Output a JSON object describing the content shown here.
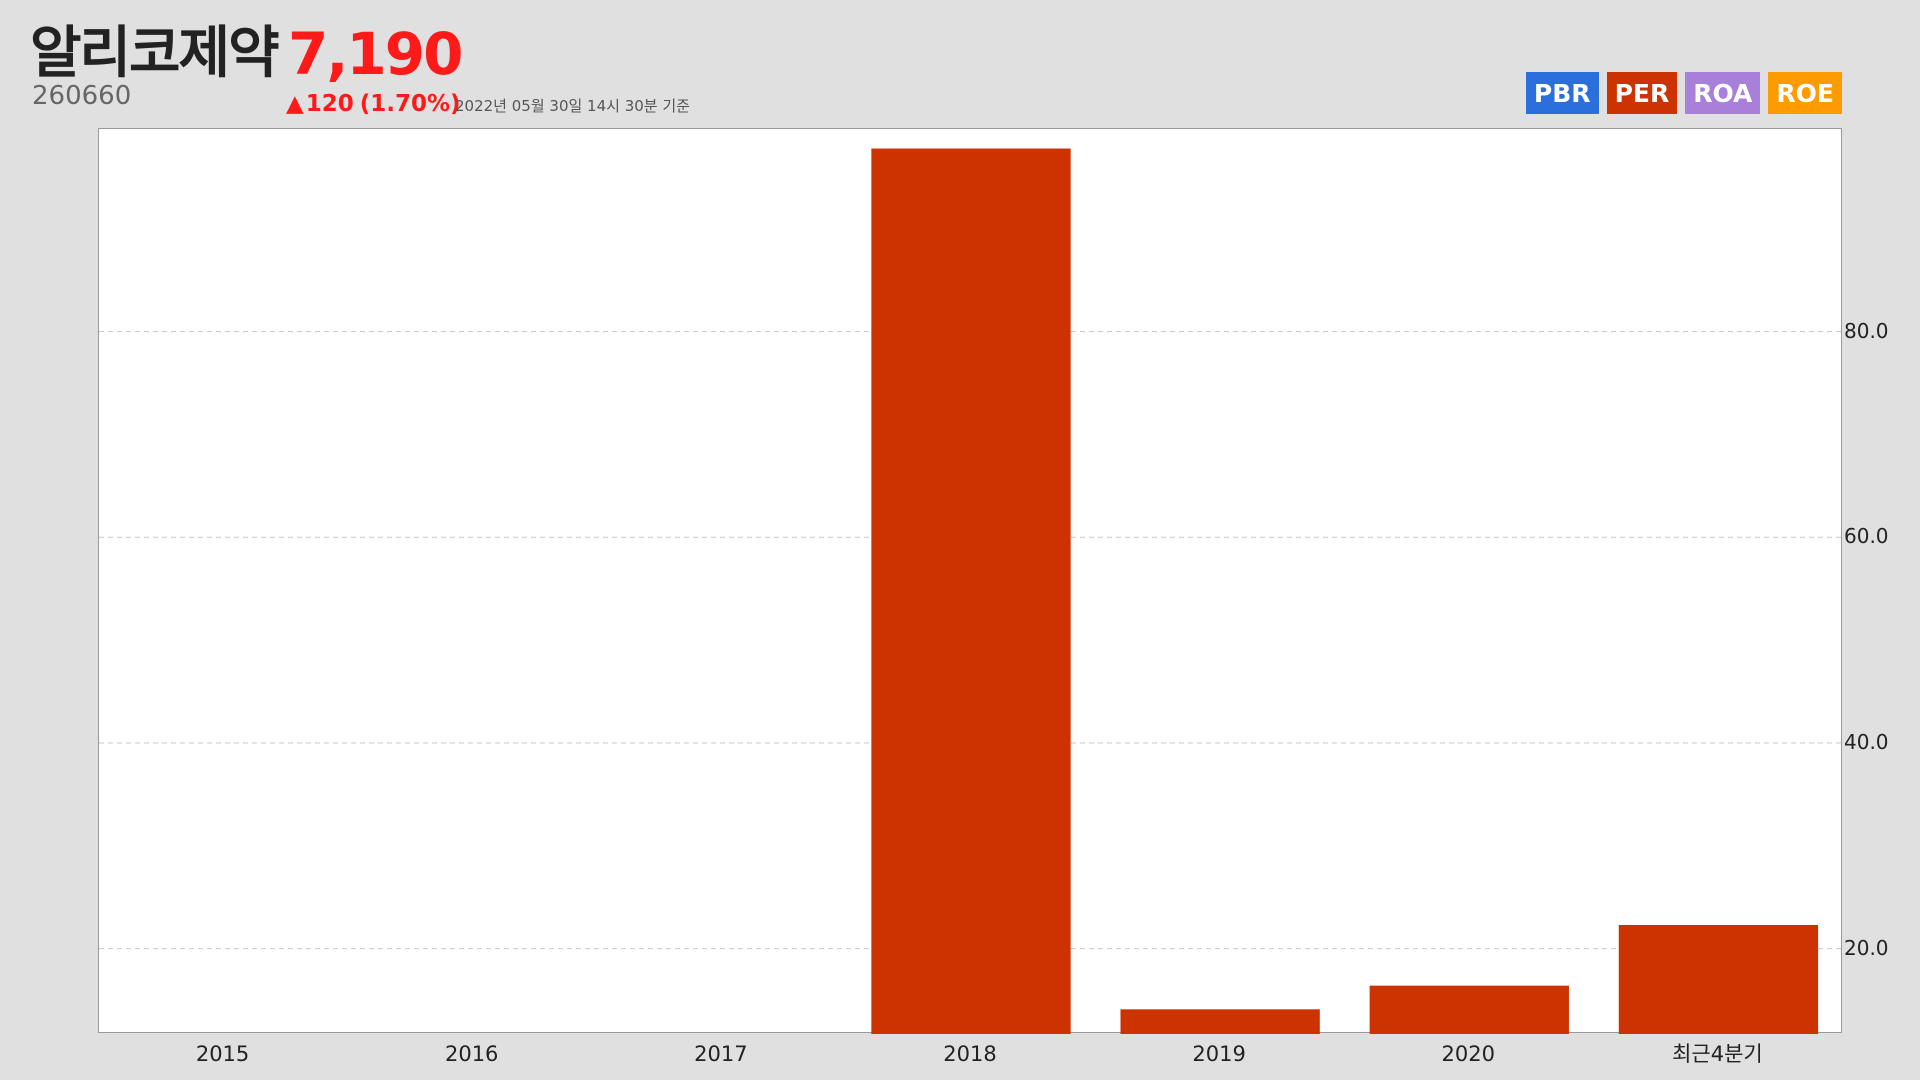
{
  "header": {
    "company_name": "알리코제약",
    "price": "7,190",
    "ticker": "260660",
    "change_arrow": "▲",
    "change_amount": "120",
    "change_pct": "(1.70%)",
    "timestamp": "2022년 05월 30일 14시 30분 기준"
  },
  "metric_tabs": [
    {
      "label": "PBR",
      "color": "#2a6fdb"
    },
    {
      "label": "PER",
      "color": "#cc3300"
    },
    {
      "label": "ROA",
      "color": "#a87fd9"
    },
    {
      "label": "ROE",
      "color": "#ff9a00"
    }
  ],
  "chart_data": {
    "type": "bar",
    "categories": [
      "2015",
      "2016",
      "2017",
      "2018",
      "2019",
      "2020",
      "최근4분기"
    ],
    "values": [
      null,
      null,
      null,
      97.8,
      14.1,
      16.4,
      22.3
    ],
    "ylim": [
      11.7,
      99.7
    ],
    "yticks": [
      20.0,
      40.0,
      60.0,
      80.0
    ],
    "ytick_labels": [
      "20.0",
      "40.0",
      "60.0",
      "80.0"
    ],
    "y_axis_side": "right",
    "grid": true,
    "bar_color": "#cc3300"
  }
}
